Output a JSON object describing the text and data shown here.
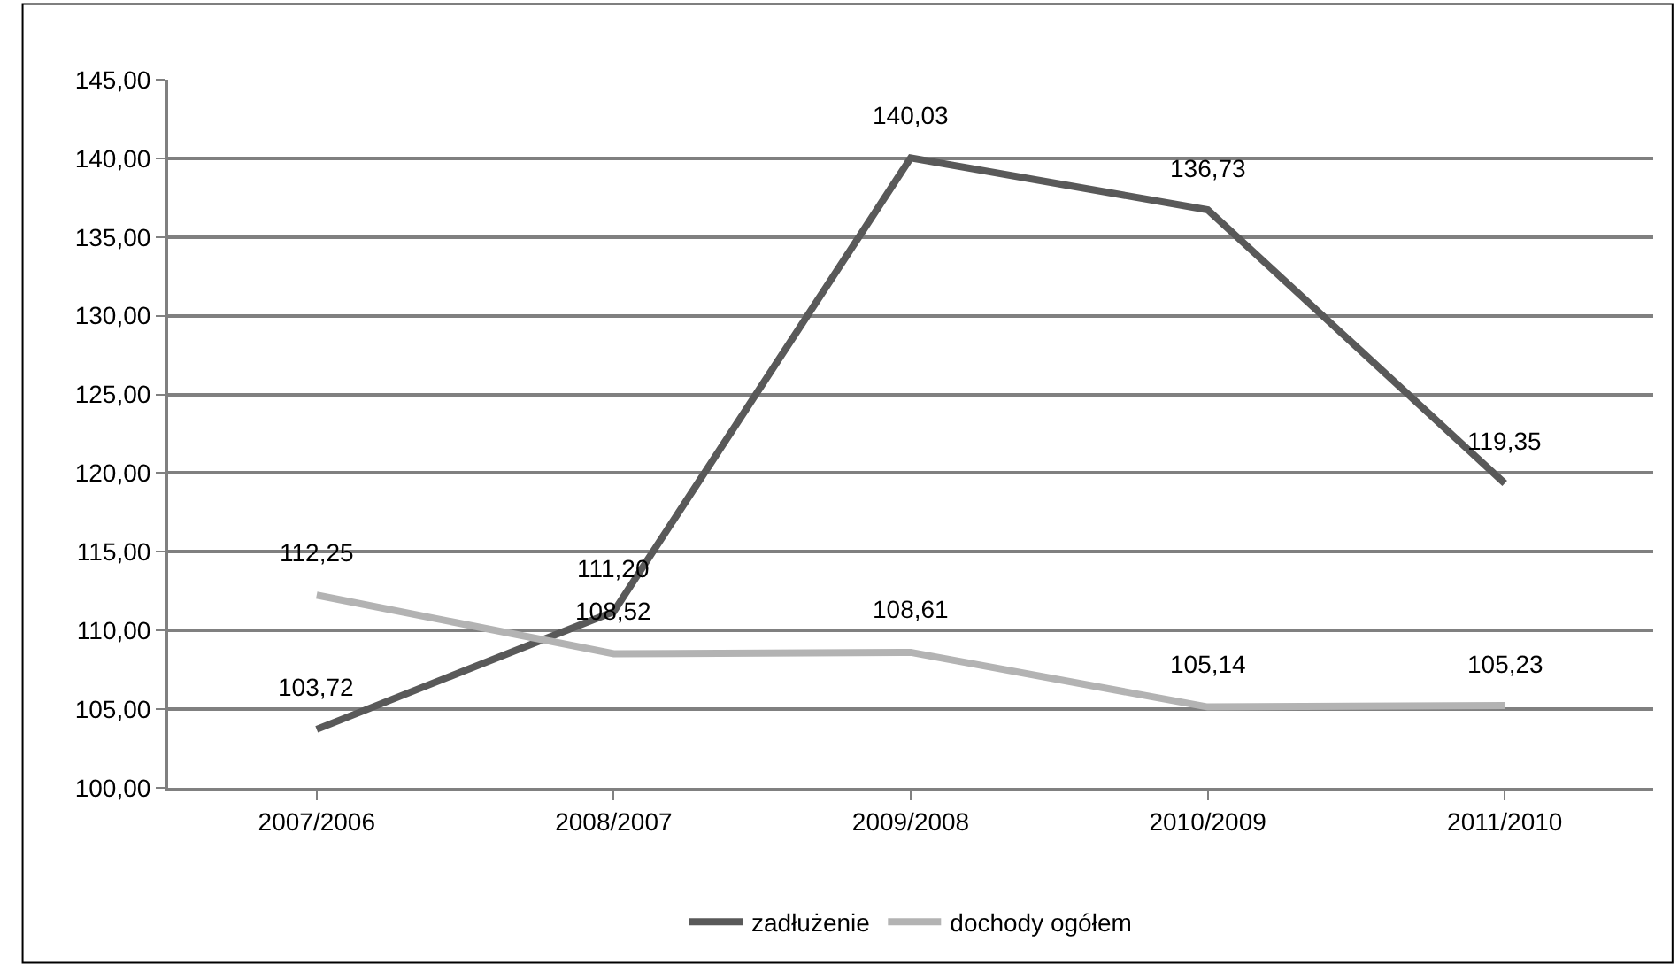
{
  "chart_data": {
    "type": "line",
    "categories": [
      "2007/2006",
      "2008/2007",
      "2009/2008",
      "2010/2009",
      "2011/2010"
    ],
    "series": [
      {
        "name": "zadłużenie",
        "color": "#595959",
        "values": [
          103.72,
          111.2,
          140.03,
          136.73,
          119.35
        ],
        "value_labels": [
          "103,72",
          "111,20",
          "140,03",
          "136,73",
          "119,35"
        ]
      },
      {
        "name": "dochody ogółem",
        "color": "#b3b3b3",
        "values": [
          112.25,
          108.52,
          108.61,
          105.14,
          105.23
        ],
        "value_labels": [
          "112,25",
          "108,52",
          "108,61",
          "105,14",
          "105,23"
        ]
      }
    ],
    "ylim": [
      100,
      145
    ],
    "yticks": [
      {
        "value": 100,
        "label": "100,00"
      },
      {
        "value": 105,
        "label": "105,00"
      },
      {
        "value": 110,
        "label": "110,00"
      },
      {
        "value": 115,
        "label": "115,00"
      },
      {
        "value": 120,
        "label": "120,00"
      },
      {
        "value": 125,
        "label": "125,00"
      },
      {
        "value": 130,
        "label": "130,00"
      },
      {
        "value": 135,
        "label": "135,00"
      },
      {
        "value": 140,
        "label": "140,00"
      },
      {
        "value": 145,
        "label": "145,00"
      }
    ],
    "grid": "y",
    "legend": "bottom",
    "marker": "none",
    "line_style": "solid"
  }
}
